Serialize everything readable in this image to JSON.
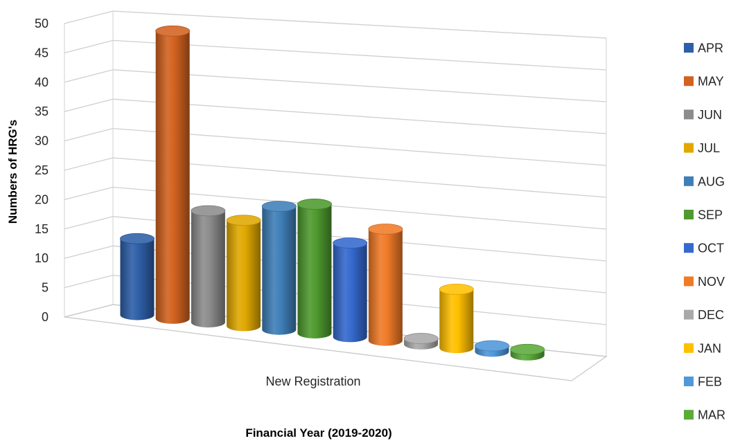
{
  "chart_data": {
    "type": "bar",
    "style": "3d-cylinder",
    "title": "",
    "xlabel": "Financial Year (2019-2020)",
    "ylabel": "Numbers of HRG's",
    "ylim": [
      0,
      50
    ],
    "y_ticks": [
      0,
      5,
      10,
      15,
      20,
      25,
      30,
      35,
      40,
      45,
      50
    ],
    "categories": [
      "New Registration"
    ],
    "grid": true,
    "legend_position": "right",
    "series": [
      {
        "name": "APR",
        "values": [
          13
        ],
        "color": "#2E5FA8"
      },
      {
        "name": "MAY",
        "values": [
          49
        ],
        "color": "#D2621F"
      },
      {
        "name": "JUN",
        "values": [
          19
        ],
        "color": "#8C8C8C"
      },
      {
        "name": "JUL",
        "values": [
          18
        ],
        "color": "#E0A800"
      },
      {
        "name": "AUG",
        "values": [
          21
        ],
        "color": "#3F7FB8"
      },
      {
        "name": "SEP",
        "values": [
          22
        ],
        "color": "#4E9A2E"
      },
      {
        "name": "OCT",
        "values": [
          16
        ],
        "color": "#3569CE"
      },
      {
        "name": "NOV",
        "values": [
          19
        ],
        "color": "#F07A28"
      },
      {
        "name": "DEC",
        "values": [
          1
        ],
        "color": "#A9A9A9"
      },
      {
        "name": "JAN",
        "values": [
          10
        ],
        "color": "#FFC000"
      },
      {
        "name": "FEB",
        "values": [
          1
        ],
        "color": "#4F98DA"
      },
      {
        "name": "MAR",
        "values": [
          1
        ],
        "color": "#5BAA3A"
      }
    ]
  }
}
